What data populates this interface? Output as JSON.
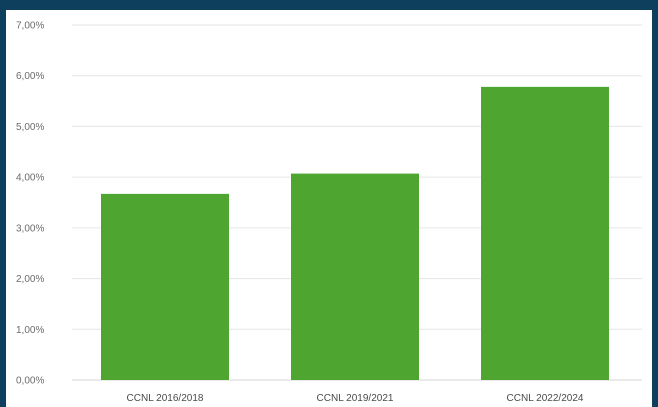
{
  "colors": {
    "background": "#0e3f5c",
    "bar": "#4ea52f"
  },
  "chart_data": {
    "type": "bar",
    "categories": [
      "CCNL 2016/2018",
      "CCNL 2019/2021",
      "CCNL 2022/2024"
    ],
    "values": [
      3.67,
      4.07,
      5.78
    ],
    "value_unit": "%",
    "ylim": [
      0,
      7
    ],
    "ytick_labels": [
      "0,00%",
      "1,00%",
      "2,00%",
      "3,00%",
      "4,00%",
      "5,00%",
      "6,00%",
      "7,00%"
    ],
    "grid": true,
    "legend": "none"
  }
}
